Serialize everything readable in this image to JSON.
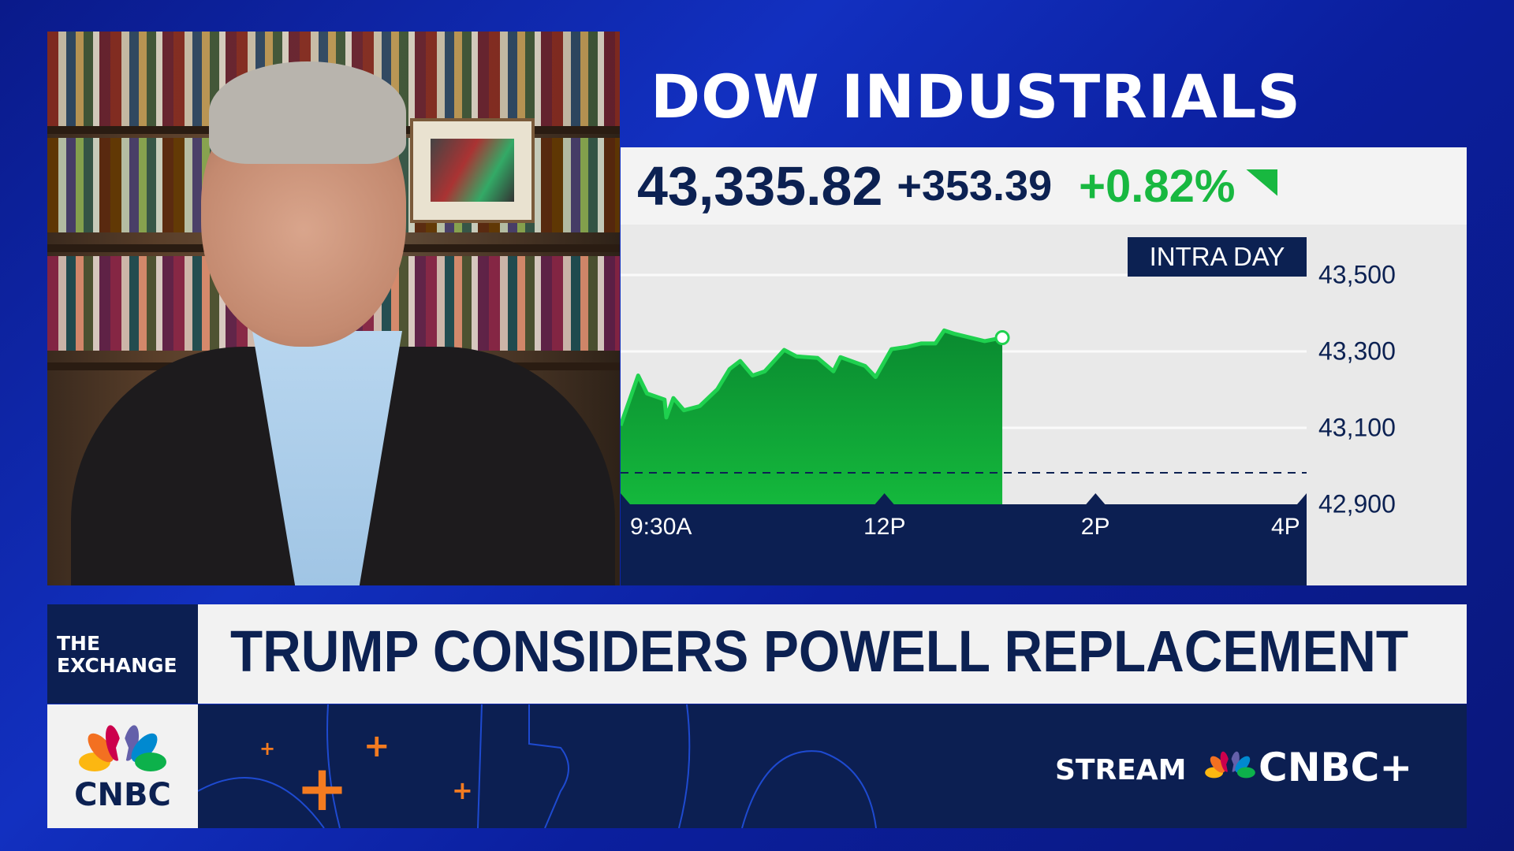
{
  "video": {
    "description_icon": "video-feed"
  },
  "header": {
    "title": "DOW INDUSTRIALS"
  },
  "quote": {
    "last": "43,335.82",
    "change": "+353.39",
    "percent": "+0.82%",
    "direction_icon": "triangle-indicator-icon",
    "up_color": "#18b840"
  },
  "chart_data": {
    "type": "area",
    "badge": "INTRA DAY",
    "x_tick_labels": [
      "9:30A",
      "12P",
      "2P",
      "4P"
    ],
    "x_ticks": [
      "9:30",
      "12:00",
      "14:00",
      "16:00"
    ],
    "xlim": [
      "9:30",
      "16:00"
    ],
    "y_tick_labels": [
      "43,500",
      "43,300",
      "43,100",
      "42,900"
    ],
    "y_ticks": [
      43500,
      43300,
      43100,
      42900
    ],
    "ylim": [
      42900,
      43500
    ],
    "previous_close": 42982.43,
    "grid": true,
    "fill_color": "#14b83c",
    "x": [
      "9:30",
      "9:40",
      "9:45",
      "9:55",
      "9:56",
      "10:00",
      "10:06",
      "10:15",
      "10:25",
      "10:32",
      "10:38",
      "10:45",
      "10:52",
      "11:03",
      "11:10",
      "11:22",
      "11:31",
      "11:35",
      "11:49",
      "11:55",
      "12:04",
      "12:13",
      "12:21",
      "12:29",
      "12:34",
      "12:40",
      "12:57",
      "13:07"
    ],
    "values": [
      43106,
      43237,
      43190,
      43174,
      43127,
      43178,
      43146,
      43157,
      43201,
      43254,
      43275,
      43237,
      43248,
      43304,
      43287,
      43283,
      43248,
      43285,
      43262,
      43233,
      43306,
      43312,
      43321,
      43321,
      43355,
      43346,
      43327,
      43336
    ]
  },
  "lower_third": {
    "show_line1": "THE",
    "show_line2": "EXCHANGE",
    "headline": "TRUMP CONSIDERS POWELL REPLACEMENT"
  },
  "branding": {
    "logo_text": "CNBC",
    "stream_label": "STREAM",
    "plus_brand": "CNBC+"
  }
}
